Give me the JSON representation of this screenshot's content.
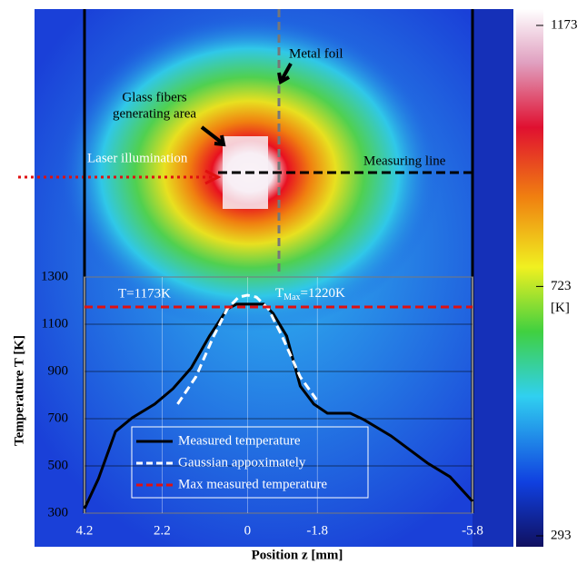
{
  "chart_data": {
    "type": "line",
    "xlabel": "Position z [mm]",
    "ylabel": "Temperature T  [K]",
    "xlim": [
      4.2,
      -5.8
    ],
    "xticks": [
      4.2,
      2.2,
      0,
      -1.8,
      -5.8
    ],
    "ylim": [
      300,
      1300
    ],
    "yticks": [
      300,
      500,
      700,
      900,
      1100,
      1300
    ],
    "grid": true,
    "series": [
      {
        "name": "Measured temperature",
        "color": "#000000",
        "dash": "solid",
        "x": [
          4.2,
          3.84,
          3.4,
          2.97,
          2.39,
          1.92,
          1.45,
          0.98,
          0.52,
          0.28,
          -0.42,
          -0.66,
          -1.01,
          -1.36,
          -1.71,
          -2.06,
          -2.65,
          -3.0,
          -3.7,
          -4.64,
          -5.22,
          -5.8
        ],
        "values": [
          319,
          446,
          646,
          704,
          762,
          827,
          915,
          1050,
          1165,
          1185,
          1185,
          1146,
          1050,
          838,
          762,
          723,
          723,
          696,
          627,
          512,
          454,
          350
        ]
      },
      {
        "name": "Gaussian appoximately",
        "color": "#ffffff",
        "dash": "dashed",
        "x": [
          1.8,
          1.33,
          0.87,
          0.52,
          0.23,
          0,
          -0.23,
          -0.54,
          -0.89,
          -1.36,
          -1.78
        ],
        "values": [
          762,
          877,
          1050,
          1165,
          1215,
          1223,
          1215,
          1165,
          1050,
          877,
          781
        ]
      },
      {
        "name": "Max measured temperature",
        "color": "#e01010",
        "dash": "dashed",
        "x": [
          4.2,
          -5.8
        ],
        "values": [
          1173,
          1173
        ]
      }
    ],
    "annotations": {
      "metal_foil": "Metal foil",
      "glass_1": "Glass fibers",
      "glass_2": "generating area",
      "laser": "Laser illumination",
      "measuring": "Measuring line",
      "t_meas": "T=1173K",
      "t_max_t": "T",
      "t_max_sub": "Max",
      "t_max_val": "=1220K"
    },
    "colorbar": {
      "lim": [
        293,
        1173
      ],
      "ticks": [
        293,
        723,
        1173
      ],
      "unit": "[K]"
    }
  }
}
